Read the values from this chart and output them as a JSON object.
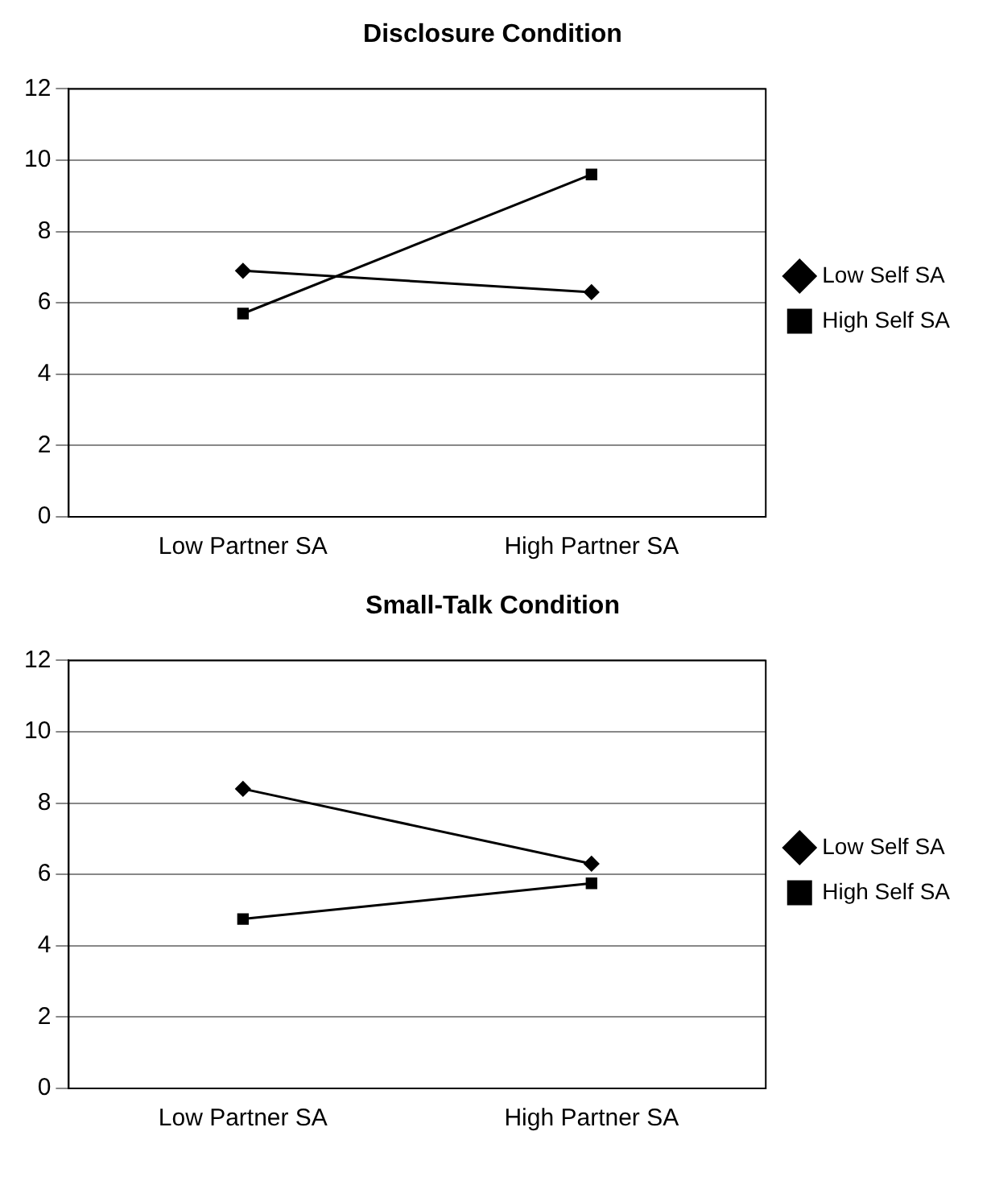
{
  "chart_data": [
    {
      "type": "line",
      "title": "Disclosure Condition",
      "categories": [
        "Low Partner SA",
        "High Partner SA"
      ],
      "ylim": [
        0,
        12
      ],
      "yticks": [
        0,
        2,
        4,
        6,
        8,
        10,
        12
      ],
      "grid": "y",
      "legend": "right",
      "series": [
        {
          "name": "Low Self SA",
          "color": "#000000",
          "marker": "diamond",
          "values": [
            6.9,
            6.3
          ]
        },
        {
          "name": "High Self SA",
          "color": "#000000",
          "marker": "square",
          "values": [
            5.7,
            9.6
          ]
        }
      ]
    },
    {
      "type": "line",
      "title": "Small-Talk Condition",
      "categories": [
        "Low Partner SA",
        "High Partner SA"
      ],
      "ylim": [
        0,
        12
      ],
      "yticks": [
        0,
        2,
        4,
        6,
        8,
        10,
        12
      ],
      "grid": "y",
      "legend": "right",
      "series": [
        {
          "name": "Low Self SA",
          "color": "#000000",
          "marker": "diamond",
          "values": [
            8.4,
            6.3
          ]
        },
        {
          "name": "High Self SA",
          "color": "#000000",
          "marker": "square",
          "values": [
            4.75,
            5.75
          ]
        }
      ]
    }
  ]
}
